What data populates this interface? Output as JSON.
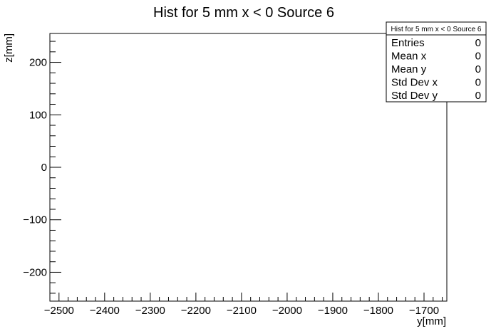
{
  "chart_data": {
    "type": "heatmap",
    "title": "Hist for 5 mm x < 0 Source 6",
    "xlabel": "y[mm]",
    "ylabel": "z[mm]",
    "xlim": [
      -2520,
      -1650
    ],
    "ylim": [
      -255,
      255
    ],
    "x_ticks": [
      -2500,
      -2400,
      -2300,
      -2200,
      -2100,
      -2000,
      -1900,
      -1800,
      -1700
    ],
    "y_ticks": [
      -200,
      -100,
      0,
      100,
      200
    ],
    "x_tick_labels": [
      "−2500",
      "−2400",
      "−2300",
      "−2200",
      "−2100",
      "−2000",
      "−1900",
      "−1800",
      "−1700"
    ],
    "y_tick_labels": [
      "−200",
      "−100",
      "0",
      "100",
      "200"
    ],
    "grid": false,
    "values": [],
    "stats_box": {
      "title": "Hist for 5 mm x < 0 Source 6",
      "placement": "top-right",
      "rows": [
        {
          "label": "Entries",
          "value": "0"
        },
        {
          "label": "Mean x",
          "value": "0"
        },
        {
          "label": "Mean y",
          "value": "0"
        },
        {
          "label": "Std Dev x",
          "value": "0"
        },
        {
          "label": "Std Dev y",
          "value": "0"
        }
      ]
    }
  }
}
